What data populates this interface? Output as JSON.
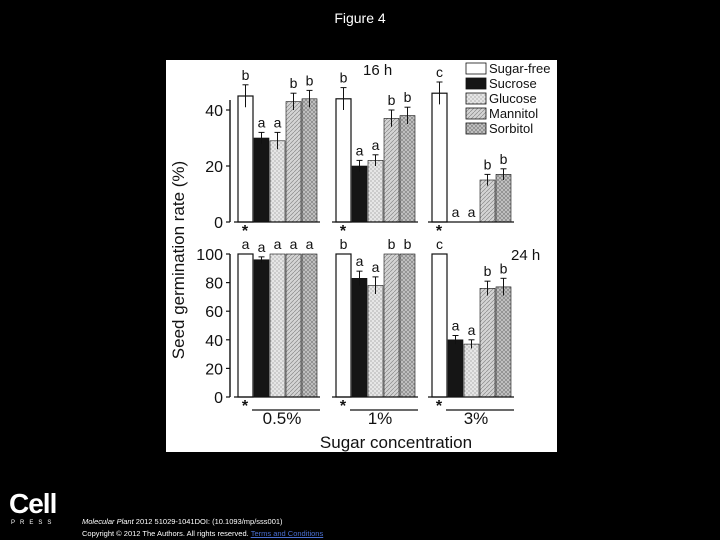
{
  "page": {
    "title": "Figure 4"
  },
  "publisher": {
    "logo_text": "Cell",
    "logo_sub": "PRESS"
  },
  "citation": {
    "journal": "Molecular Plant",
    "details": " 2012 51029-1041DOI: (10.1093/mp/sss001)",
    "copyright": "Copyright © 2012 The Authors. All rights reserved. ",
    "link": "Terms and Conditions"
  },
  "colors": {
    "background": "#000000",
    "panel": "#ffffff",
    "ink": "#111111",
    "sucrose": "#151515",
    "glucose": "#dcdcdc",
    "mannitol": "#c8c8c8",
    "sorbitol": "#bdbdbd",
    "link": "#4a6fd1"
  },
  "chart_data": {
    "type": "bar",
    "ylabel": "Seed germination rate (%)",
    "xlabel": "Sugar concentration",
    "categories": [
      "0.5%",
      "1%",
      "3%"
    ],
    "legend": [
      "Sugar-free",
      "Sucrose",
      "Glucose",
      "Mannitol",
      "Sorbitol"
    ],
    "legend_position": "top-right",
    "grid": false,
    "panels": [
      {
        "label": "16 h",
        "ylim": [
          0,
          50
        ],
        "yticks": [
          0,
          20,
          40
        ],
        "series": [
          {
            "name": "Sugar-free",
            "values": [
              45,
              44,
              46
            ],
            "errors": [
              4,
              4,
              4
            ],
            "letters": [
              "b",
              "b",
              "c"
            ]
          },
          {
            "name": "Sucrose",
            "values": [
              30,
              20,
              0
            ],
            "errors": [
              2,
              2,
              0
            ],
            "letters": [
              "a",
              "a",
              "a"
            ]
          },
          {
            "name": "Glucose",
            "values": [
              29,
              22,
              0
            ],
            "errors": [
              3,
              2,
              0
            ],
            "letters": [
              "a",
              "a",
              "a"
            ]
          },
          {
            "name": "Mannitol",
            "values": [
              43,
              37,
              15
            ],
            "errors": [
              3,
              3,
              2
            ],
            "letters": [
              "b",
              "b",
              "b"
            ]
          },
          {
            "name": "Sorbitol",
            "values": [
              44,
              38,
              17
            ],
            "errors": [
              3,
              3,
              2
            ],
            "letters": [
              "b",
              "b",
              "b"
            ]
          }
        ]
      },
      {
        "label": "24 h",
        "ylim": [
          0,
          100
        ],
        "yticks": [
          0,
          20,
          40,
          60,
          80,
          100
        ],
        "series": [
          {
            "name": "Sugar-free",
            "values": [
              100,
              100,
              100
            ],
            "errors": [
              0,
              0,
              0
            ],
            "letters": [
              "a",
              "b",
              "c"
            ]
          },
          {
            "name": "Sucrose",
            "values": [
              96,
              83,
              40
            ],
            "errors": [
              2,
              5,
              3
            ],
            "letters": [
              "a",
              "a",
              "a"
            ]
          },
          {
            "name": "Glucose",
            "values": [
              100,
              78,
              37
            ],
            "errors": [
              0,
              6,
              3
            ],
            "letters": [
              "a",
              "a",
              "a"
            ]
          },
          {
            "name": "Mannitol",
            "values": [
              100,
              100,
              76
            ],
            "errors": [
              0,
              0,
              5
            ],
            "letters": [
              "a",
              "b",
              "b"
            ]
          },
          {
            "name": "Sorbitol",
            "values": [
              100,
              100,
              77
            ],
            "errors": [
              0,
              0,
              6
            ],
            "letters": [
              "a",
              "b",
              "b"
            ]
          }
        ]
      }
    ],
    "asterisk": "*"
  }
}
